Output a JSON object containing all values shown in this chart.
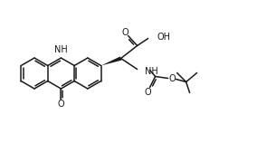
{
  "bg_color": "#ffffff",
  "line_color": "#1a1a1a",
  "lw": 1.1,
  "fs": 7.0
}
